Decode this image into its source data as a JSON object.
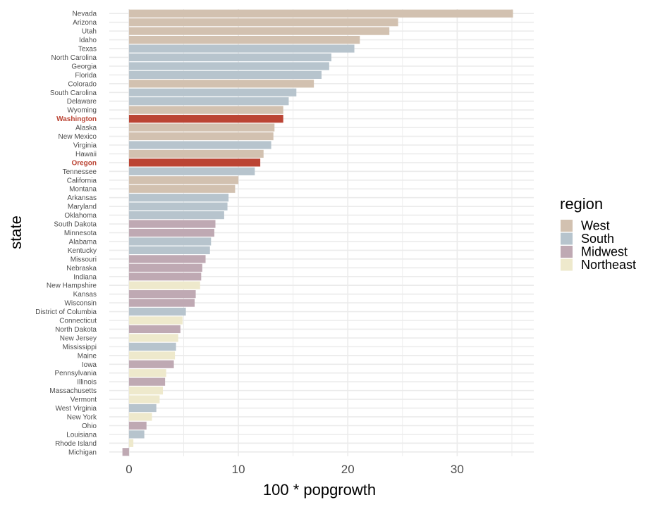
{
  "chart_data": {
    "type": "bar",
    "orientation": "horizontal",
    "xlabel": "100 * popgrowth",
    "ylabel": "state",
    "xlim": [
      -1.8,
      37.0
    ],
    "xticks": [
      0,
      10,
      20,
      30
    ],
    "grid": true,
    "legend": {
      "title": "region",
      "placement": "right",
      "entries": [
        {
          "name": "West",
          "color": "#d2c1b0"
        },
        {
          "name": "South",
          "color": "#b7c4cd"
        },
        {
          "name": "Midwest",
          "color": "#bfa9b3"
        },
        {
          "name": "Northeast",
          "color": "#eee9cc"
        }
      ]
    },
    "highlight_color": "#bb4434",
    "bars": [
      {
        "state": "Nevada",
        "value": 35.1,
        "region": "West",
        "highlight": false
      },
      {
        "state": "Arizona",
        "value": 24.6,
        "region": "West",
        "highlight": false
      },
      {
        "state": "Utah",
        "value": 23.8,
        "region": "West",
        "highlight": false
      },
      {
        "state": "Idaho",
        "value": 21.1,
        "region": "West",
        "highlight": false
      },
      {
        "state": "Texas",
        "value": 20.6,
        "region": "South",
        "highlight": false
      },
      {
        "state": "North Carolina",
        "value": 18.5,
        "region": "South",
        "highlight": false
      },
      {
        "state": "Georgia",
        "value": 18.3,
        "region": "South",
        "highlight": false
      },
      {
        "state": "Florida",
        "value": 17.6,
        "region": "South",
        "highlight": false
      },
      {
        "state": "Colorado",
        "value": 16.9,
        "region": "West",
        "highlight": false
      },
      {
        "state": "South Carolina",
        "value": 15.3,
        "region": "South",
        "highlight": false
      },
      {
        "state": "Delaware",
        "value": 14.6,
        "region": "South",
        "highlight": false
      },
      {
        "state": "Wyoming",
        "value": 14.1,
        "region": "West",
        "highlight": false
      },
      {
        "state": "Washington",
        "value": 14.1,
        "region": "West",
        "highlight": true
      },
      {
        "state": "Alaska",
        "value": 13.3,
        "region": "West",
        "highlight": false
      },
      {
        "state": "New Mexico",
        "value": 13.2,
        "region": "West",
        "highlight": false
      },
      {
        "state": "Virginia",
        "value": 13.0,
        "region": "South",
        "highlight": false
      },
      {
        "state": "Hawaii",
        "value": 12.3,
        "region": "West",
        "highlight": false
      },
      {
        "state": "Oregon",
        "value": 12.0,
        "region": "West",
        "highlight": true
      },
      {
        "state": "Tennessee",
        "value": 11.5,
        "region": "South",
        "highlight": false
      },
      {
        "state": "California",
        "value": 10.0,
        "region": "West",
        "highlight": false
      },
      {
        "state": "Montana",
        "value": 9.7,
        "region": "West",
        "highlight": false
      },
      {
        "state": "Arkansas",
        "value": 9.1,
        "region": "South",
        "highlight": false
      },
      {
        "state": "Maryland",
        "value": 9.0,
        "region": "South",
        "highlight": false
      },
      {
        "state": "Oklahoma",
        "value": 8.7,
        "region": "South",
        "highlight": false
      },
      {
        "state": "South Dakota",
        "value": 7.9,
        "region": "Midwest",
        "highlight": false
      },
      {
        "state": "Minnesota",
        "value": 7.8,
        "region": "Midwest",
        "highlight": false
      },
      {
        "state": "Alabama",
        "value": 7.5,
        "region": "South",
        "highlight": false
      },
      {
        "state": "Kentucky",
        "value": 7.4,
        "region": "South",
        "highlight": false
      },
      {
        "state": "Missouri",
        "value": 7.0,
        "region": "Midwest",
        "highlight": false
      },
      {
        "state": "Nebraska",
        "value": 6.7,
        "region": "Midwest",
        "highlight": false
      },
      {
        "state": "Indiana",
        "value": 6.6,
        "region": "Midwest",
        "highlight": false
      },
      {
        "state": "New Hampshire",
        "value": 6.5,
        "region": "Northeast",
        "highlight": false
      },
      {
        "state": "Kansas",
        "value": 6.1,
        "region": "Midwest",
        "highlight": false
      },
      {
        "state": "Wisconsin",
        "value": 6.0,
        "region": "Midwest",
        "highlight": false
      },
      {
        "state": "District of Columbia",
        "value": 5.2,
        "region": "South",
        "highlight": false
      },
      {
        "state": "Connecticut",
        "value": 4.9,
        "region": "Northeast",
        "highlight": false
      },
      {
        "state": "North Dakota",
        "value": 4.7,
        "region": "Midwest",
        "highlight": false
      },
      {
        "state": "New Jersey",
        "value": 4.5,
        "region": "Northeast",
        "highlight": false
      },
      {
        "state": "Mississippi",
        "value": 4.3,
        "region": "South",
        "highlight": false
      },
      {
        "state": "Maine",
        "value": 4.2,
        "region": "Northeast",
        "highlight": false
      },
      {
        "state": "Iowa",
        "value": 4.1,
        "region": "Midwest",
        "highlight": false
      },
      {
        "state": "Pennsylvania",
        "value": 3.4,
        "region": "Northeast",
        "highlight": false
      },
      {
        "state": "Illinois",
        "value": 3.3,
        "region": "Midwest",
        "highlight": false
      },
      {
        "state": "Massachusetts",
        "value": 3.1,
        "region": "Northeast",
        "highlight": false
      },
      {
        "state": "Vermont",
        "value": 2.8,
        "region": "Northeast",
        "highlight": false
      },
      {
        "state": "West Virginia",
        "value": 2.5,
        "region": "South",
        "highlight": false
      },
      {
        "state": "New York",
        "value": 2.1,
        "region": "Northeast",
        "highlight": false
      },
      {
        "state": "Ohio",
        "value": 1.6,
        "region": "Midwest",
        "highlight": false
      },
      {
        "state": "Louisiana",
        "value": 1.4,
        "region": "South",
        "highlight": false
      },
      {
        "state": "Rhode Island",
        "value": 0.4,
        "region": "Northeast",
        "highlight": false
      },
      {
        "state": "Michigan",
        "value": -0.6,
        "region": "Midwest",
        "highlight": false
      }
    ]
  }
}
